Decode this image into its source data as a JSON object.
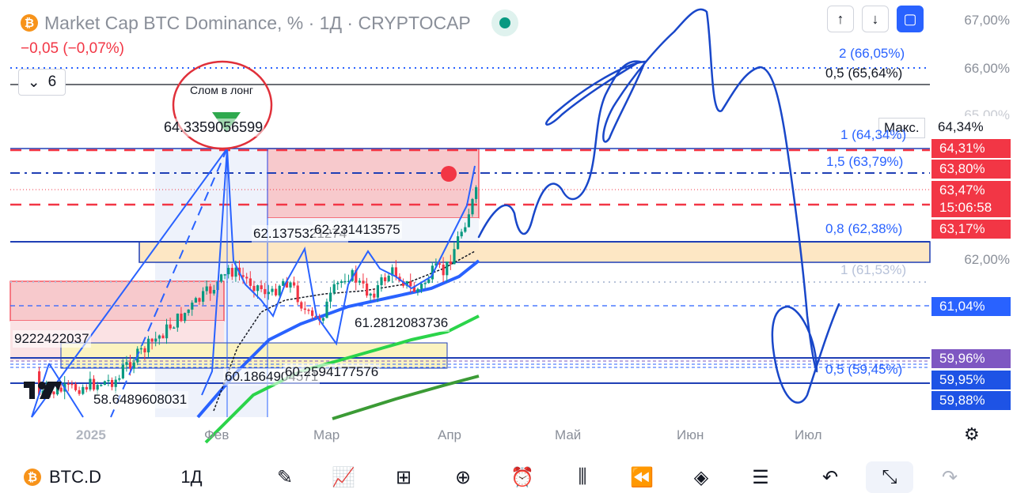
{
  "header": {
    "title": "Market Cap BTC Dominance, % · 1Д · CRYPTOCAP",
    "coin_glyph": "₿",
    "change": "−0,05 (−0,07%)",
    "indicators_count": "6",
    "status_color": "#089981"
  },
  "toolbar_right": {
    "up_glyph": "↑",
    "down_glyph": "↓",
    "layout_glyph": "▢"
  },
  "price_axis": {
    "labels": [
      "67,00%",
      "66,00%",
      "65,00%",
      "62,00%"
    ],
    "max_tag": "Макс.",
    "max_value": "64,34%",
    "badges": [
      {
        "text": "64,31%",
        "color": "#f23645"
      },
      {
        "text": "63,80%",
        "color": "#f23645"
      },
      {
        "text": "63,47%",
        "color": "#f23645"
      },
      {
        "text": "15:06:58",
        "color": "#f23645"
      },
      {
        "text": "63,17%",
        "color": "#f23645"
      },
      {
        "text": "61,04%",
        "color": "#2962ff"
      },
      {
        "text": "59,96%",
        "color": "#7e57c2"
      },
      {
        "text": "59,95%",
        "color": "#1e53e5"
      },
      {
        "text": "59,88%",
        "color": "#1e53e5"
      }
    ]
  },
  "fib_levels": [
    {
      "text": "2 (66,05%)"
    },
    {
      "text": "0,5 (65,64%)"
    },
    {
      "text": "1 (64,34%)"
    },
    {
      "text": "1,5 (63,79%)"
    },
    {
      "text": "0,8 (62,38%)"
    },
    {
      "text": "1 (61,53%)"
    },
    {
      "text": "0,5 (59,45%)"
    }
  ],
  "value_labels": [
    "64.3359056599",
    "62.1375321274",
    "62.231413575",
    "61.2812083736",
    "9222422037",
    "60.1864904571",
    "60.2594177576",
    "58.6489608031"
  ],
  "annotation": "Слом в лонг",
  "time_axis": [
    "2025",
    "Фев",
    "Мар",
    "Апр",
    "Май",
    "Июн",
    "Июл"
  ],
  "bottom_bar": {
    "symbol": "BTC.D",
    "interval": "1Д",
    "tools": [
      "pencil-icon",
      "indicators-icon",
      "grid-icon",
      "add-icon",
      "alert-icon",
      "candles-icon",
      "replay-icon",
      "layers-icon",
      "settings-icon",
      "undo-icon",
      "collapse-icon",
      "redo-icon"
    ]
  },
  "colors": {
    "up": "#089981",
    "down": "#f23645",
    "accent": "#2962ff",
    "drawing": "#1947c9"
  }
}
